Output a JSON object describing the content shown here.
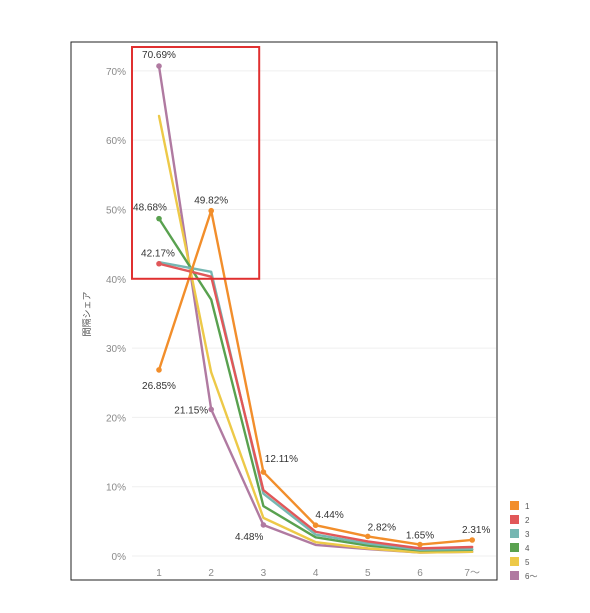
{
  "chart_data": {
    "type": "line",
    "ylabel": "間隔シェア",
    "xlabel": "",
    "categories": [
      "1",
      "2",
      "3",
      "4",
      "5",
      "6",
      "7〜"
    ],
    "ylim": [
      0,
      72
    ],
    "yticks": [
      0,
      10,
      20,
      30,
      40,
      50,
      60,
      70
    ],
    "ytick_labels": [
      "0%",
      "10%",
      "20%",
      "30%",
      "40%",
      "50%",
      "60%",
      "70%"
    ],
    "grid": true,
    "legend_position": "bottom-right",
    "series": [
      {
        "name": "1",
        "color": "#f28e2b",
        "values": [
          26.85,
          49.82,
          12.11,
          4.44,
          2.82,
          1.65,
          2.31
        ],
        "labels": [
          "26.85%",
          "49.82%",
          "12.11%",
          "4.44%",
          "2.82%",
          "1.65%",
          "2.31%"
        ]
      },
      {
        "name": "2",
        "color": "#e15759",
        "values": [
          42.17,
          40.3,
          9.5,
          3.5,
          2.1,
          1.1,
          1.3
        ],
        "labels": [
          "42.17%",
          "",
          "",
          "",
          "",
          "",
          ""
        ]
      },
      {
        "name": "3",
        "color": "#76b7b2",
        "values": [
          42.4,
          41.0,
          9.0,
          3.1,
          1.8,
          0.9,
          1.0
        ],
        "labels": [
          "",
          "",
          "",
          "",
          "",
          "",
          ""
        ]
      },
      {
        "name": "4",
        "color": "#59a14f",
        "values": [
          48.68,
          37.0,
          7.2,
          2.7,
          1.5,
          0.8,
          0.9
        ],
        "labels": [
          "48.68%",
          "",
          "",
          "",
          "",
          "",
          ""
        ]
      },
      {
        "name": "5",
        "color": "#edc948",
        "values": [
          63.5,
          26.5,
          5.5,
          2.0,
          1.1,
          0.5,
          0.6
        ],
        "labels": [
          "",
          "",
          "",
          "",
          "",
          "",
          ""
        ]
      },
      {
        "name": "6〜",
        "color": "#b07aa1",
        "values": [
          70.69,
          21.15,
          4.48,
          1.6,
          1.0,
          0.5,
          0.6
        ],
        "labels": [
          "70.69%",
          "21.15%",
          "4.48%",
          "",
          "",
          "",
          ""
        ]
      }
    ],
    "annotation": {
      "type": "highlight-box",
      "color": "#e03030",
      "x_range": [
        "1",
        "2"
      ],
      "y_range": [
        40,
        72
      ]
    }
  }
}
